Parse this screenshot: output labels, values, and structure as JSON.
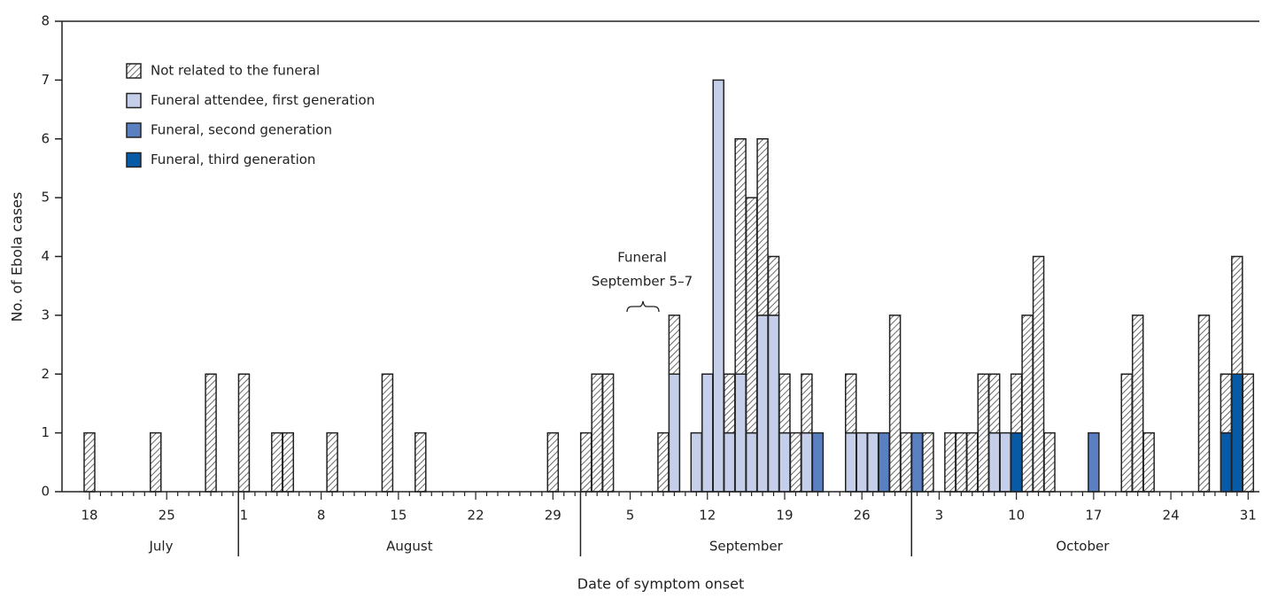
{
  "chart_data": {
    "type": "stacked-bar",
    "x_label": "Date of symptom onset",
    "y_label": "No. of Ebola cases",
    "annotation": [
      "Funeral",
      "September 5–7"
    ],
    "categories": [
      "18",
      null,
      null,
      null,
      null,
      null,
      null,
      "25",
      null,
      null,
      null,
      null,
      null,
      null,
      "1",
      null,
      null,
      null,
      null,
      null,
      null,
      "8",
      null,
      null,
      null,
      null,
      null,
      null,
      "15",
      null,
      null,
      null,
      null,
      null,
      null,
      "22",
      null,
      null,
      null,
      null,
      null,
      null,
      "29",
      null,
      null,
      null,
      null,
      null,
      null,
      "5",
      null,
      null,
      null,
      null,
      null,
      null,
      "12",
      null,
      null,
      null,
      null,
      null,
      null,
      "19",
      null,
      null,
      null,
      null,
      null,
      null,
      "26",
      null,
      null,
      null,
      null,
      null,
      null,
      "3",
      null,
      null,
      null,
      null,
      null,
      null,
      "10",
      null,
      null,
      null,
      null,
      null,
      null,
      "17",
      null,
      null,
      null,
      null,
      null,
      null,
      "24",
      null,
      null,
      null,
      null,
      null,
      null,
      "31"
    ],
    "months": [
      "July",
      "August",
      "September",
      "October"
    ],
    "month_days": [
      14,
      31,
      30,
      31
    ],
    "series": [
      {
        "name": "Not related to the funeral",
        "color": "#ffffff",
        "hatch": true,
        "values": [
          1,
          0,
          0,
          0,
          0,
          0,
          1,
          0,
          0,
          0,
          0,
          2,
          0,
          0,
          2,
          0,
          0,
          1,
          1,
          0,
          0,
          0,
          1,
          0,
          0,
          0,
          0,
          2,
          0,
          0,
          1,
          0,
          0,
          0,
          0,
          0,
          0,
          0,
          0,
          0,
          0,
          0,
          1,
          0,
          0,
          1,
          2,
          2,
          0,
          0,
          0,
          0,
          1,
          1,
          0,
          0,
          0,
          0,
          1,
          4,
          4,
          3,
          1,
          1,
          1,
          1,
          0,
          0,
          0,
          1,
          0,
          0,
          0,
          3,
          1,
          0,
          1,
          0,
          1,
          1,
          1,
          2,
          1,
          0,
          1,
          3,
          4,
          1,
          0,
          0,
          0,
          0,
          0,
          0,
          2,
          3,
          1,
          0,
          0,
          0,
          0,
          3,
          0,
          1,
          2,
          2
        ]
      },
      {
        "name": "Funeral attendee, first generation",
        "color": "#c6cfea",
        "values": [
          0,
          0,
          0,
          0,
          0,
          0,
          0,
          0,
          0,
          0,
          0,
          0,
          0,
          0,
          0,
          0,
          0,
          0,
          0,
          0,
          0,
          0,
          0,
          0,
          0,
          0,
          0,
          0,
          0,
          0,
          0,
          0,
          0,
          0,
          0,
          0,
          0,
          0,
          0,
          0,
          0,
          0,
          0,
          0,
          0,
          0,
          0,
          0,
          0,
          0,
          0,
          0,
          0,
          2,
          0,
          1,
          2,
          7,
          1,
          2,
          1,
          3,
          3,
          1,
          0,
          1,
          0,
          0,
          0,
          1,
          1,
          1,
          0,
          0,
          0,
          0,
          0,
          0,
          0,
          0,
          0,
          0,
          1,
          1,
          0,
          0,
          0,
          0,
          0,
          0,
          0,
          0,
          0,
          0,
          0,
          0,
          0,
          0,
          0,
          0,
          0,
          0,
          0,
          0,
          0,
          0
        ]
      },
      {
        "name": "Funeral, second generation",
        "color": "#5a80c2",
        "values": [
          0,
          0,
          0,
          0,
          0,
          0,
          0,
          0,
          0,
          0,
          0,
          0,
          0,
          0,
          0,
          0,
          0,
          0,
          0,
          0,
          0,
          0,
          0,
          0,
          0,
          0,
          0,
          0,
          0,
          0,
          0,
          0,
          0,
          0,
          0,
          0,
          0,
          0,
          0,
          0,
          0,
          0,
          0,
          0,
          0,
          0,
          0,
          0,
          0,
          0,
          0,
          0,
          0,
          0,
          0,
          0,
          0,
          0,
          0,
          0,
          0,
          0,
          0,
          0,
          0,
          0,
          1,
          0,
          0,
          0,
          0,
          0,
          1,
          0,
          0,
          1,
          0,
          0,
          0,
          0,
          0,
          0,
          0,
          0,
          0,
          0,
          0,
          0,
          0,
          0,
          0,
          1,
          0,
          0,
          0,
          0,
          0,
          0,
          0,
          0,
          0,
          0,
          0,
          0,
          0,
          0
        ]
      },
      {
        "name": "Funeral, third generation",
        "color": "#075aa6",
        "values": [
          0,
          0,
          0,
          0,
          0,
          0,
          0,
          0,
          0,
          0,
          0,
          0,
          0,
          0,
          0,
          0,
          0,
          0,
          0,
          0,
          0,
          0,
          0,
          0,
          0,
          0,
          0,
          0,
          0,
          0,
          0,
          0,
          0,
          0,
          0,
          0,
          0,
          0,
          0,
          0,
          0,
          0,
          0,
          0,
          0,
          0,
          0,
          0,
          0,
          0,
          0,
          0,
          0,
          0,
          0,
          0,
          0,
          0,
          0,
          0,
          0,
          0,
          0,
          0,
          0,
          0,
          0,
          0,
          0,
          0,
          0,
          0,
          0,
          0,
          0,
          0,
          0,
          0,
          0,
          0,
          0,
          0,
          0,
          0,
          1,
          0,
          0,
          0,
          0,
          0,
          0,
          0,
          0,
          0,
          0,
          0,
          0,
          0,
          0,
          0,
          0,
          0,
          0,
          1,
          2,
          0
        ]
      }
    ],
    "ylim": [
      0,
      8
    ],
    "yticks": [
      0,
      1,
      2,
      3,
      4,
      5,
      6,
      7,
      8
    ]
  }
}
